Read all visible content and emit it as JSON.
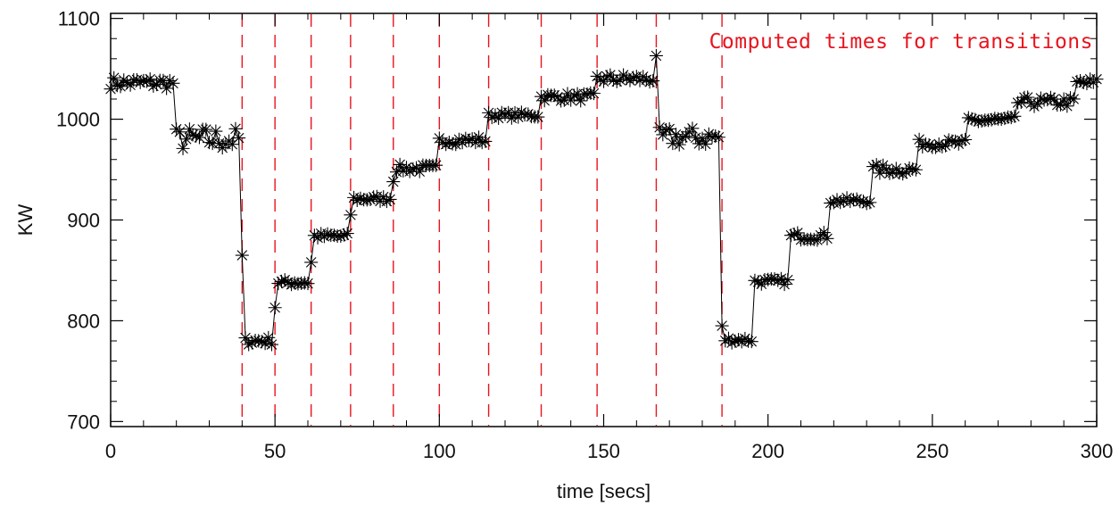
{
  "chart_data": {
    "type": "scatter",
    "title": "",
    "xlabel": "time [secs]",
    "ylabel": "KW",
    "xlim": [
      0,
      300
    ],
    "ylim": [
      695,
      1105
    ],
    "x_ticks": [
      0,
      50,
      100,
      150,
      200,
      250,
      300
    ],
    "y_ticks": [
      700,
      800,
      900,
      1000,
      1100
    ],
    "grid": false,
    "marker": "asterisk",
    "marker_color": "#000000",
    "line_color": "#000000",
    "annotation": {
      "text": "Computed times for transitions",
      "color": "#e8141e",
      "placement": "top-right"
    },
    "transition_times": [
      40,
      50,
      61,
      73,
      86,
      100,
      115,
      131,
      148,
      166,
      186
    ],
    "transition_color": "#e8141e",
    "series": [
      {
        "segments": [
          {
            "x0": 0,
            "x1": 19,
            "level": 1036,
            "spread": 6
          },
          {
            "x0": 20,
            "x1": 39,
            "level": 980,
            "spread": 12
          },
          {
            "x0": 40,
            "x1": 40,
            "level": 865,
            "spread": 0
          },
          {
            "x0": 41,
            "x1": 49,
            "level": 780,
            "spread": 4
          },
          {
            "x0": 50,
            "x1": 50,
            "level": 813,
            "spread": 0
          },
          {
            "x0": 51,
            "x1": 60,
            "level": 838,
            "spread": 3
          },
          {
            "x0": 61,
            "x1": 61,
            "level": 858,
            "spread": 0
          },
          {
            "x0": 62,
            "x1": 72,
            "level": 884,
            "spread": 3
          },
          {
            "x0": 73,
            "x1": 73,
            "level": 905,
            "spread": 0
          },
          {
            "x0": 74,
            "x1": 85,
            "level": 921,
            "spread": 3
          },
          {
            "x0": 86,
            "x1": 86,
            "level": 938,
            "spread": 0
          },
          {
            "x0": 87,
            "x1": 99,
            "level": 951,
            "spread": 4
          },
          {
            "x0": 100,
            "x1": 114,
            "level": 979,
            "spread": 4
          },
          {
            "x0": 115,
            "x1": 130,
            "level": 1004,
            "spread": 3
          },
          {
            "x0": 131,
            "x1": 147,
            "level": 1022,
            "spread": 4
          },
          {
            "x0": 148,
            "x1": 165,
            "level": 1040,
            "spread": 5
          },
          {
            "x0": 166,
            "x1": 166,
            "level": 1063,
            "spread": 0
          },
          {
            "x0": 167,
            "x1": 185,
            "level": 982,
            "spread": 10
          },
          {
            "x0": 186,
            "x1": 186,
            "level": 795,
            "spread": 0
          },
          {
            "x0": 187,
            "x1": 195,
            "level": 781,
            "spread": 3
          },
          {
            "x0": 196,
            "x1": 206,
            "level": 839,
            "spread": 3
          },
          {
            "x0": 207,
            "x1": 218,
            "level": 884,
            "spread": 4
          },
          {
            "x0": 219,
            "x1": 231,
            "level": 919,
            "spread": 3
          },
          {
            "x0": 232,
            "x1": 245,
            "level": 950,
            "spread": 5
          },
          {
            "x0": 246,
            "x1": 260,
            "level": 976,
            "spread": 4
          },
          {
            "x0": 261,
            "x1": 275,
            "level": 999,
            "spread": 4
          },
          {
            "x0": 276,
            "x1": 293,
            "level": 1017,
            "spread": 5
          },
          {
            "x0": 294,
            "x1": 300,
            "level": 1036,
            "spread": 5
          }
        ]
      }
    ]
  }
}
